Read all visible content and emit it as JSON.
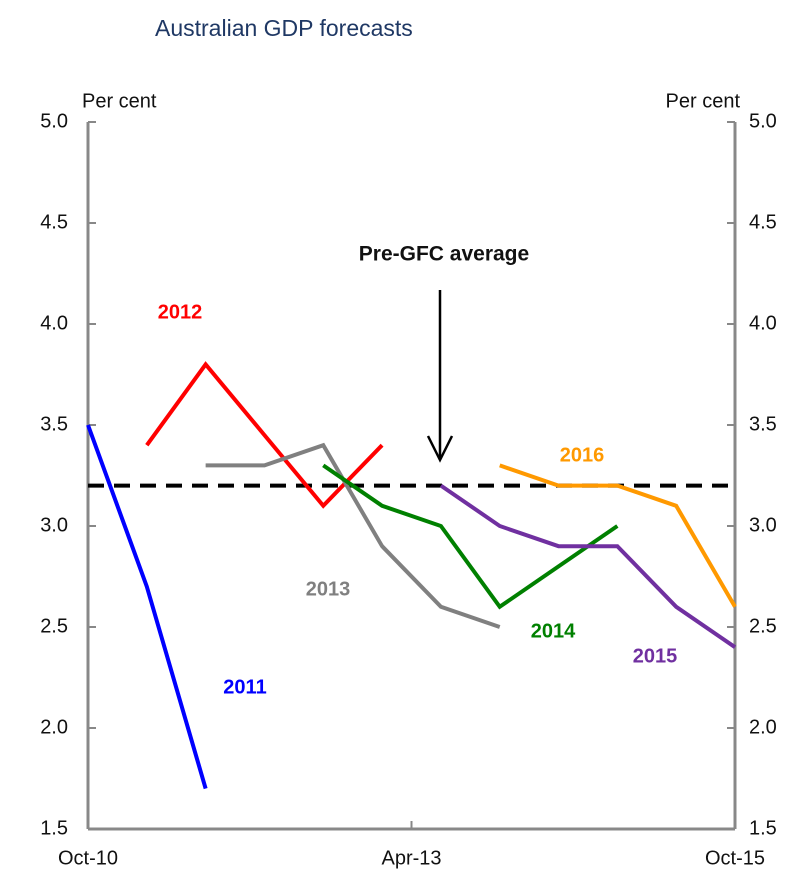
{
  "chart_data": {
    "type": "line",
    "title": "Australian GDP forecasts",
    "y_label": "Per cent",
    "y2_label": "Per cent",
    "xlim": [
      0,
      11
    ],
    "xticks": [
      {
        "value": 0,
        "label": "Oct-10"
      },
      {
        "value": 5.5,
        "label": "Apr-13"
      },
      {
        "value": 11,
        "label": "Oct-15"
      }
    ],
    "ylim": [
      1.5,
      5.0
    ],
    "yticks": [
      {
        "value": 1.5,
        "label": "1.5"
      },
      {
        "value": 2.0,
        "label": "2.0"
      },
      {
        "value": 2.5,
        "label": "2.5"
      },
      {
        "value": 3.0,
        "label": "3.0"
      },
      {
        "value": 3.5,
        "label": "3.5"
      },
      {
        "value": 4.0,
        "label": "4.0"
      },
      {
        "value": 4.5,
        "label": "4.5"
      },
      {
        "value": 5.0,
        "label": "5.0"
      }
    ],
    "y2lim": [
      1.5,
      5.0
    ],
    "y2ticks": [
      {
        "value": 1.5,
        "label": "1.5"
      },
      {
        "value": 2.0,
        "label": "2.0"
      },
      {
        "value": 2.5,
        "label": "2.5"
      },
      {
        "value": 3.0,
        "label": "3.0"
      },
      {
        "value": 3.5,
        "label": "3.5"
      },
      {
        "value": 4.0,
        "label": "4.0"
      },
      {
        "value": 4.5,
        "label": "4.5"
      },
      {
        "value": 5.0,
        "label": "5.0"
      }
    ],
    "series": [
      {
        "name": "2011",
        "color": "#0000ff",
        "values": [
          3.5,
          2.7,
          1.7,
          null,
          null,
          null,
          null,
          null,
          null,
          null,
          null,
          null
        ]
      },
      {
        "name": "2012",
        "color": "#ff0000",
        "values": [
          null,
          3.4,
          3.8,
          3.45,
          3.1,
          3.4,
          null,
          null,
          null,
          null,
          null,
          null
        ]
      },
      {
        "name": "2013",
        "color": "#808080",
        "values": [
          null,
          null,
          3.3,
          3.3,
          3.4,
          2.9,
          2.6,
          2.5,
          null,
          null,
          null,
          null
        ]
      },
      {
        "name": "2014",
        "color": "#008000",
        "values": [
          null,
          null,
          null,
          null,
          3.3,
          3.1,
          3.0,
          2.6,
          2.8,
          3.0,
          null,
          null
        ]
      },
      {
        "name": "2015",
        "color": "#7030a0",
        "values": [
          null,
          null,
          null,
          null,
          null,
          null,
          3.2,
          3.0,
          2.9,
          2.9,
          2.6,
          2.4
        ]
      },
      {
        "name": "2016",
        "color": "#ff9900",
        "values": [
          null,
          null,
          null,
          null,
          null,
          null,
          null,
          3.3,
          3.2,
          3.2,
          3.1,
          2.6
        ]
      }
    ],
    "reference_line": {
      "label": "Pre-GFC average",
      "value": 3.2,
      "color": "#000000"
    }
  }
}
